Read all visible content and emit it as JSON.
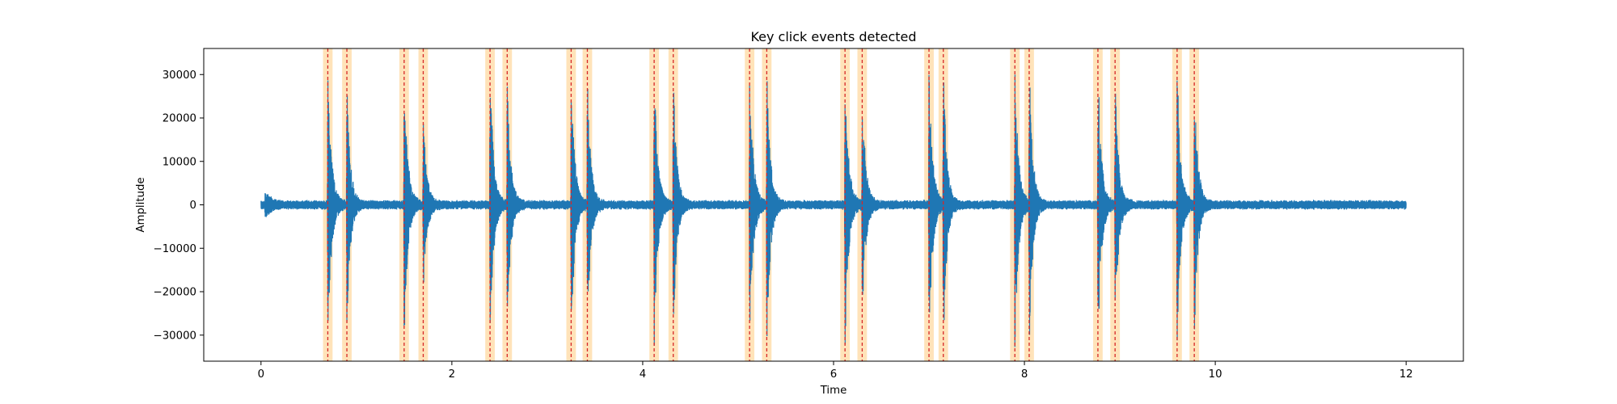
{
  "chart_data": {
    "type": "line",
    "title": "Key click events detected",
    "xlabel": "Time",
    "ylabel": "Amplitude",
    "xlim": [
      -0.6,
      12.6
    ],
    "ylim": [
      -36000,
      36000
    ],
    "x_ticks": [
      0,
      2,
      4,
      6,
      8,
      10,
      12
    ],
    "x_tick_labels": [
      "0",
      "2",
      "4",
      "6",
      "8",
      "10",
      "12"
    ],
    "y_ticks": [
      -30000,
      -20000,
      -10000,
      0,
      10000,
      20000,
      30000
    ],
    "y_tick_labels": [
      "−30000",
      "−20000",
      "−10000",
      "0",
      "10000",
      "20000",
      "30000"
    ],
    "grid": false,
    "legend": "none",
    "colors": {
      "waveform": "#1f77b4",
      "event_line": "#d62728",
      "event_band": "#ffdead"
    },
    "signal": {
      "duration": 12,
      "baseline_noise_amplitude": 1000,
      "onset_burst": {
        "time": 0.05,
        "amplitude": 2500
      }
    },
    "events": [
      {
        "time": 0.7,
        "peak": 33000
      },
      {
        "time": 0.9,
        "peak": 28000
      },
      {
        "time": 1.5,
        "peak": 33000
      },
      {
        "time": 1.7,
        "peak": 21000
      },
      {
        "time": 2.4,
        "peak": 33000
      },
      {
        "time": 2.58,
        "peak": 29000
      },
      {
        "time": 3.25,
        "peak": 33000
      },
      {
        "time": 3.42,
        "peak": 29000
      },
      {
        "time": 4.12,
        "peak": 33000
      },
      {
        "time": 4.32,
        "peak": 30000
      },
      {
        "time": 5.12,
        "peak": 33000
      },
      {
        "time": 5.3,
        "peak": 33000
      },
      {
        "time": 6.12,
        "peak": 33000
      },
      {
        "time": 6.3,
        "peak": 27000
      },
      {
        "time": 7.0,
        "peak": 33000
      },
      {
        "time": 7.15,
        "peak": 33000
      },
      {
        "time": 7.9,
        "peak": 33000
      },
      {
        "time": 8.05,
        "peak": 33000
      },
      {
        "time": 8.77,
        "peak": 33000
      },
      {
        "time": 8.95,
        "peak": 30000
      },
      {
        "time": 9.6,
        "peak": 33000
      },
      {
        "time": 9.78,
        "peak": 31000
      }
    ],
    "event_band_halfwidth": 0.05
  }
}
